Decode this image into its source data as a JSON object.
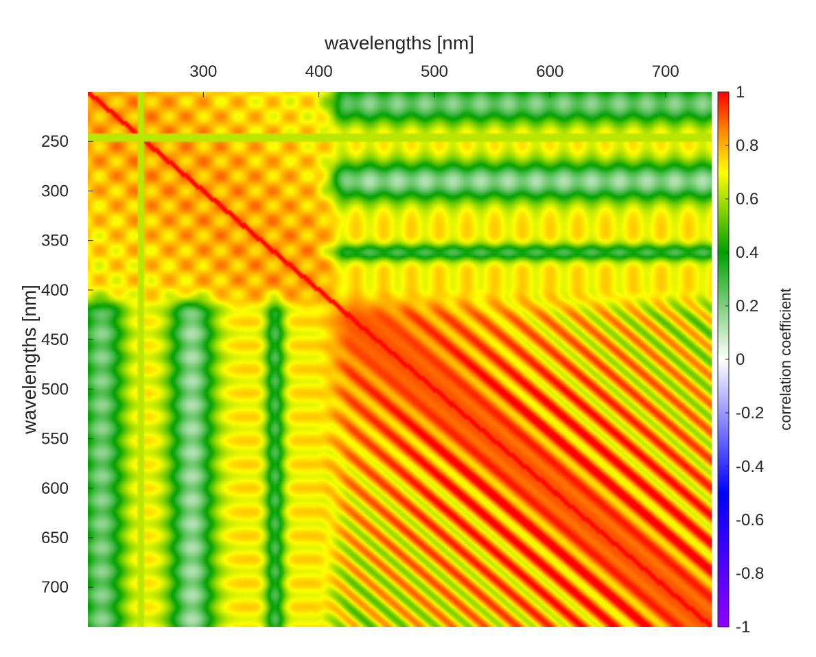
{
  "chart_data": {
    "type": "heatmap",
    "title": "",
    "xlabel": "wavelengths [nm]",
    "ylabel": "wavelengths [nm]",
    "x_axis_position": "top",
    "y_direction": "reversed",
    "xlim": [
      200,
      740
    ],
    "ylim": [
      200,
      740
    ],
    "x_ticks": [
      300,
      400,
      500,
      600,
      700
    ],
    "y_ticks": [
      250,
      300,
      350,
      400,
      450,
      500,
      550,
      600,
      650,
      700
    ],
    "grid": false,
    "colorbar": {
      "label": "correlation coefficient",
      "limits": [
        -1,
        1
      ],
      "ticks": [
        1,
        0.8,
        0.6,
        0.4,
        0.2,
        0,
        -0.2,
        -0.4,
        -0.6,
        -0.8,
        -1
      ],
      "tick_labels": [
        "1",
        "0.8",
        "0.6",
        "0.4",
        "0.2",
        "0",
        "-0.2",
        "-0.4",
        "-0.6",
        "-0.8",
        "-1"
      ],
      "colormap": [
        {
          "value": -1.0,
          "color": "#8f00ff"
        },
        {
          "value": -0.5,
          "color": "#0000ff"
        },
        {
          "value": 0.0,
          "color": "#ffffff"
        },
        {
          "value": 0.4,
          "color": "#00a000"
        },
        {
          "value": 0.7,
          "color": "#ffff00"
        },
        {
          "value": 0.85,
          "color": "#ff8c00"
        },
        {
          "value": 1.0,
          "color": "#ff0000"
        }
      ]
    },
    "approx_correlation_blocks": [
      {
        "x_range": [
          200,
          240
        ],
        "y_range": [
          200,
          240
        ],
        "r": 0.95
      },
      {
        "x_range": [
          260,
          380
        ],
        "y_range": [
          260,
          380
        ],
        "r": 0.88
      },
      {
        "x_range": [
          420,
          740
        ],
        "y_range": [
          420,
          740
        ],
        "r": 0.85
      },
      {
        "x_range": [
          420,
          740
        ],
        "y_range": [
          200,
          230
        ],
        "r": 0.45
      },
      {
        "x_range": [
          420,
          740
        ],
        "y_range": [
          280,
          310
        ],
        "r": 0.35
      },
      {
        "x_range": [
          420,
          740
        ],
        "y_range": [
          355,
          370
        ],
        "r": 0.4
      },
      {
        "x_range": [
          200,
          225
        ],
        "y_range": [
          400,
          740
        ],
        "r": 0.35
      },
      {
        "x_range": [
          275,
          305
        ],
        "y_range": [
          400,
          740
        ],
        "r": 0.3
      },
      {
        "x_range": [
          355,
          370
        ],
        "y_range": [
          420,
          740
        ],
        "r": 0.4
      }
    ]
  }
}
